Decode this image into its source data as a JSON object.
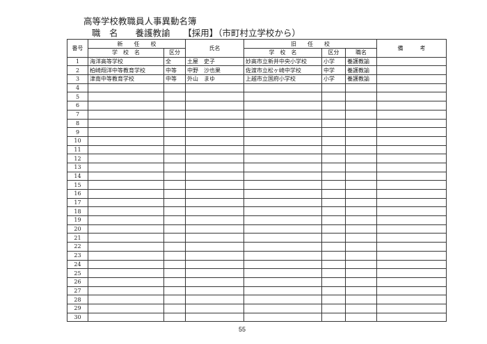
{
  "title": "高等学校教職員人事異動名簿",
  "subtitle": "職　名　　養護教諭　　【採用】（市町村立学校から）",
  "headers": {
    "no": "番号",
    "new_school": "新　　任　　校",
    "school_name": "学　校　名",
    "kubun": "区分",
    "name": "氏名",
    "old_school": "旧　　任　　校",
    "old_school_name": "学　校　名",
    "old_kubun": "区分",
    "position": "職名",
    "remarks": "備　　　考"
  },
  "rows": [
    {
      "no": "1",
      "school": "海洋高等学校",
      "kubun": "全",
      "name": "土屋　史子",
      "old_school": "妙高市立新井中央小学校",
      "old_kubun": "小学",
      "position": "養護教諭",
      "remarks": ""
    },
    {
      "no": "2",
      "school": "柏崎翔洋中等教育学校",
      "kubun": "中等",
      "name": "中野　沙也果",
      "old_school": "佐渡市立松ヶ崎中学校",
      "old_kubun": "中学",
      "position": "養護教諭",
      "remarks": ""
    },
    {
      "no": "3",
      "school": "津南中等教育学校",
      "kubun": "中等",
      "name": "外山　まゆ",
      "old_school": "上越市立国府小学校",
      "old_kubun": "小学",
      "position": "養護教諭",
      "remarks": ""
    },
    {
      "no": "4"
    },
    {
      "no": "5"
    },
    {
      "no": "6"
    },
    {
      "no": "7"
    },
    {
      "no": "8"
    },
    {
      "no": "9"
    },
    {
      "no": "10"
    },
    {
      "no": "11"
    },
    {
      "no": "12"
    },
    {
      "no": "13"
    },
    {
      "no": "14"
    },
    {
      "no": "15"
    },
    {
      "no": "16"
    },
    {
      "no": "17"
    },
    {
      "no": "18"
    },
    {
      "no": "19"
    },
    {
      "no": "20"
    },
    {
      "no": "21"
    },
    {
      "no": "22"
    },
    {
      "no": "23"
    },
    {
      "no": "24"
    },
    {
      "no": "25"
    },
    {
      "no": "26"
    },
    {
      "no": "27"
    },
    {
      "no": "28"
    },
    {
      "no": "29"
    },
    {
      "no": "30"
    }
  ],
  "page_number": "55"
}
